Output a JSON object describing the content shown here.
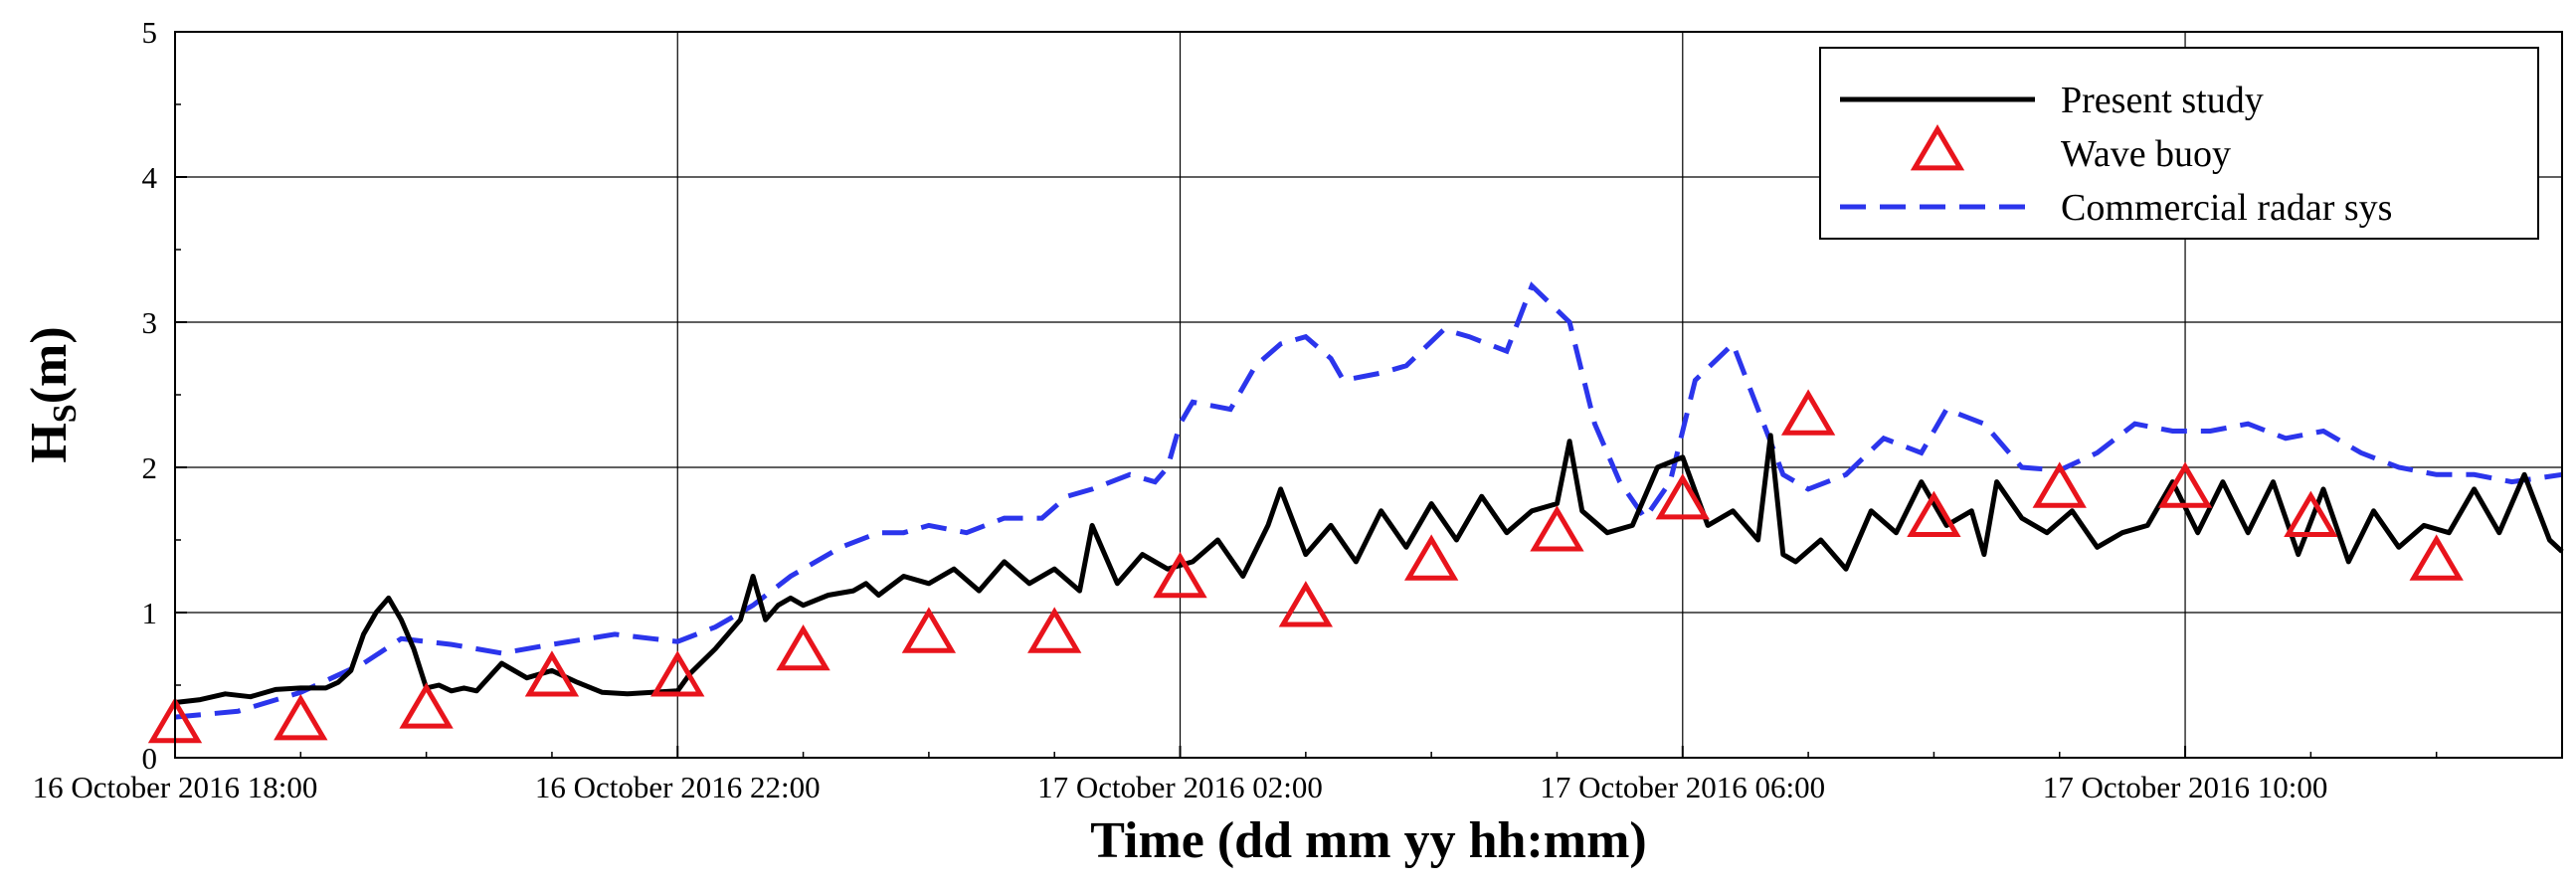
{
  "chart_data": {
    "type": "line",
    "title": "",
    "xlabel": "Time (dd mm yy hh:mm)",
    "ylabel": {
      "main": "H",
      "sub": "S",
      "unit": "(m)"
    },
    "xlim_hours": [
      0,
      19
    ],
    "ylim": [
      0,
      5
    ],
    "grid": true,
    "legend_position": "top-right",
    "xticks": [
      {
        "hours": 0,
        "label": "16 October 2016 18:00"
      },
      {
        "hours": 4,
        "label": "16 October 2016 22:00"
      },
      {
        "hours": 8,
        "label": "17 October 2016 02:00"
      },
      {
        "hours": 12,
        "label": "17 October 2016 06:00"
      },
      {
        "hours": 16,
        "label": "17 October 2016 10:00"
      }
    ],
    "yticks": [
      {
        "value": 0,
        "label": "0"
      },
      {
        "value": 1,
        "label": "1"
      },
      {
        "value": 2,
        "label": "2"
      },
      {
        "value": 3,
        "label": "3"
      },
      {
        "value": 4,
        "label": "4"
      },
      {
        "value": 5,
        "label": "5"
      }
    ],
    "series": [
      {
        "name": "Present study",
        "style": "solid-line",
        "color": "#000000",
        "x": [
          0,
          0.2,
          0.4,
          0.6,
          0.8,
          1.0,
          1.2,
          1.3,
          1.4,
          1.5,
          1.6,
          1.7,
          1.8,
          1.9,
          2.0,
          2.1,
          2.2,
          2.3,
          2.4,
          2.6,
          2.8,
          3.0,
          3.2,
          3.4,
          3.6,
          3.8,
          4.0,
          4.1,
          4.3,
          4.5,
          4.6,
          4.7,
          4.8,
          4.9,
          5.0,
          5.2,
          5.4,
          5.5,
          5.6,
          5.8,
          6.0,
          6.2,
          6.4,
          6.6,
          6.8,
          7.0,
          7.2,
          7.3,
          7.5,
          7.7,
          7.9,
          8.1,
          8.3,
          8.5,
          8.7,
          8.8,
          9.0,
          9.2,
          9.4,
          9.6,
          9.8,
          10.0,
          10.2,
          10.4,
          10.6,
          10.8,
          11.0,
          11.1,
          11.2,
          11.4,
          11.6,
          11.8,
          12.0,
          12.2,
          12.4,
          12.6,
          12.7,
          12.8,
          12.9,
          13.1,
          13.3,
          13.5,
          13.7,
          13.9,
          14.1,
          14.3,
          14.4,
          14.5,
          14.7,
          14.9,
          15.1,
          15.3,
          15.5,
          15.7,
          15.9,
          16.1,
          16.3,
          16.5,
          16.7,
          16.9,
          17.1,
          17.3,
          17.5,
          17.7,
          17.9,
          18.1,
          18.3,
          18.5,
          18.7,
          18.9,
          19.0
        ],
        "values": [
          0.38,
          0.4,
          0.44,
          0.42,
          0.47,
          0.48,
          0.48,
          0.52,
          0.6,
          0.85,
          1.0,
          1.1,
          0.95,
          0.75,
          0.48,
          0.5,
          0.46,
          0.48,
          0.46,
          0.65,
          0.55,
          0.6,
          0.52,
          0.45,
          0.44,
          0.45,
          0.46,
          0.58,
          0.75,
          0.95,
          1.25,
          0.95,
          1.05,
          1.1,
          1.05,
          1.12,
          1.15,
          1.2,
          1.12,
          1.25,
          1.2,
          1.3,
          1.15,
          1.35,
          1.2,
          1.3,
          1.15,
          1.6,
          1.2,
          1.4,
          1.3,
          1.35,
          1.5,
          1.25,
          1.6,
          1.85,
          1.4,
          1.6,
          1.35,
          1.7,
          1.45,
          1.75,
          1.5,
          1.8,
          1.55,
          1.7,
          1.75,
          2.18,
          1.7,
          1.55,
          1.6,
          2.0,
          2.07,
          1.6,
          1.7,
          1.5,
          2.22,
          1.4,
          1.35,
          1.5,
          1.3,
          1.7,
          1.55,
          1.9,
          1.6,
          1.7,
          1.4,
          1.9,
          1.65,
          1.55,
          1.7,
          1.45,
          1.55,
          1.6,
          1.9,
          1.55,
          1.9,
          1.55,
          1.9,
          1.4,
          1.85,
          1.35,
          1.7,
          1.45,
          1.6,
          1.55,
          1.85,
          1.55,
          1.95,
          1.5,
          1.42
        ]
      },
      {
        "name": "Wave buoy",
        "style": "triangle-marker",
        "color": "#e8141c",
        "x": [
          0,
          1,
          2,
          3,
          4,
          5,
          6,
          7,
          8,
          9,
          10,
          11,
          12,
          13,
          14,
          15,
          16,
          17,
          18
        ],
        "values": [
          0.22,
          0.24,
          0.32,
          0.54,
          0.54,
          0.72,
          0.84,
          0.84,
          1.22,
          1.02,
          1.34,
          1.54,
          1.76,
          2.34,
          1.64,
          1.84,
          1.84,
          1.64,
          1.34
        ]
      },
      {
        "name": "Commercial radar sys",
        "style": "dashed-line",
        "color": "#2b35ec",
        "x": [
          0,
          0.5,
          1.0,
          1.5,
          1.8,
          2.2,
          2.6,
          3.0,
          3.5,
          3.8,
          4.0,
          4.3,
          4.6,
          4.9,
          5.3,
          5.6,
          5.8,
          6.0,
          6.3,
          6.6,
          6.9,
          7.1,
          7.3,
          7.6,
          7.8,
          7.9,
          8.0,
          8.1,
          8.4,
          8.6,
          8.8,
          9.0,
          9.2,
          9.3,
          9.6,
          9.8,
          10.1,
          10.3,
          10.6,
          10.8,
          11.1,
          11.3,
          11.5,
          11.7,
          11.9,
          12.1,
          12.4,
          12.6,
          12.8,
          13.0,
          13.3,
          13.6,
          13.9,
          14.1,
          14.4,
          14.7,
          15.0,
          15.3,
          15.6,
          15.9,
          16.2,
          16.5,
          16.8,
          17.1,
          17.4,
          17.7,
          18.0,
          18.3,
          18.6,
          19.0
        ],
        "values": [
          0.28,
          0.32,
          0.45,
          0.65,
          0.82,
          0.78,
          0.72,
          0.78,
          0.85,
          0.82,
          0.8,
          0.9,
          1.05,
          1.25,
          1.45,
          1.55,
          1.55,
          1.6,
          1.55,
          1.65,
          1.65,
          1.8,
          1.85,
          1.95,
          1.9,
          2.0,
          2.3,
          2.45,
          2.4,
          2.7,
          2.85,
          2.9,
          2.75,
          2.6,
          2.65,
          2.7,
          2.95,
          2.9,
          2.8,
          3.25,
          3.0,
          2.3,
          1.9,
          1.65,
          1.9,
          2.6,
          2.85,
          2.4,
          1.95,
          1.85,
          1.95,
          2.2,
          2.1,
          2.4,
          2.3,
          2.0,
          1.98,
          2.1,
          2.3,
          2.25,
          2.25,
          2.3,
          2.2,
          2.25,
          2.1,
          2.0,
          1.95,
          1.95,
          1.9,
          1.95
        ]
      }
    ]
  }
}
